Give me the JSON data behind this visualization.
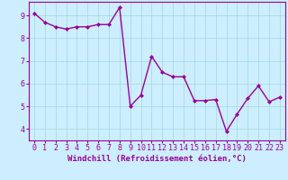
{
  "x": [
    0,
    1,
    2,
    3,
    4,
    5,
    6,
    7,
    8,
    9,
    10,
    11,
    12,
    13,
    14,
    15,
    16,
    17,
    18,
    19,
    20,
    21,
    22,
    23
  ],
  "y": [
    9.1,
    8.7,
    8.5,
    8.4,
    8.5,
    8.5,
    8.6,
    8.6,
    9.35,
    5.0,
    5.5,
    7.2,
    6.5,
    6.3,
    6.3,
    5.25,
    5.25,
    5.3,
    3.9,
    4.65,
    5.35,
    5.9,
    5.2,
    5.4
  ],
  "line_color": "#990099",
  "marker": "D",
  "marker_size": 2.0,
  "bg_color": "#cceeff",
  "grid_color": "#aadddd",
  "xlabel": "Windchill (Refroidissement éolien,°C)",
  "xlim": [
    -0.5,
    23.5
  ],
  "ylim": [
    3.5,
    9.6
  ],
  "yticks": [
    4,
    5,
    6,
    7,
    8,
    9
  ],
  "xtick_labels": [
    "0",
    "1",
    "2",
    "3",
    "4",
    "5",
    "6",
    "7",
    "8",
    "9",
    "10",
    "11",
    "12",
    "13",
    "14",
    "15",
    "16",
    "17",
    "18",
    "19",
    "20",
    "21",
    "22",
    "23"
  ],
  "xlabel_fontsize": 6.5,
  "tick_fontsize": 6.0,
  "line_width": 1.0
}
